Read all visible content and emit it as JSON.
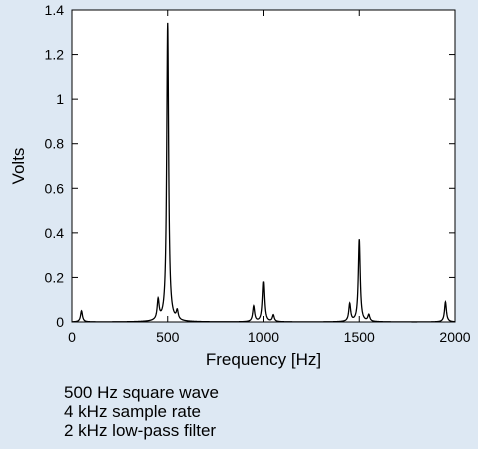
{
  "chart_data": {
    "type": "line",
    "title": "",
    "xlabel": "Frequency [Hz]",
    "ylabel": "Volts",
    "xlim": [
      0,
      2000
    ],
    "ylim": [
      0,
      1.4
    ],
    "xticks": [
      0,
      500,
      1000,
      1500,
      2000
    ],
    "xtick_labels": [
      "0",
      "500",
      "1000",
      "1500",
      "2000"
    ],
    "yticks": [
      0,
      0.2,
      0.4,
      0.6,
      0.8,
      1.0,
      1.2,
      1.4
    ],
    "ytick_labels": [
      "0",
      "0.2",
      "0.4",
      "0.6",
      "0.8",
      "1",
      "1.2",
      "1.4"
    ],
    "grid": false,
    "line_color": "#000000",
    "peaks": [
      {
        "x": 50,
        "y": 0.05
      },
      {
        "x": 450,
        "y": 0.09
      },
      {
        "x": 500,
        "y": 1.34
      },
      {
        "x": 550,
        "y": 0.04
      },
      {
        "x": 950,
        "y": 0.07
      },
      {
        "x": 1000,
        "y": 0.18
      },
      {
        "x": 1050,
        "y": 0.03
      },
      {
        "x": 1450,
        "y": 0.08
      },
      {
        "x": 1500,
        "y": 0.37
      },
      {
        "x": 1550,
        "y": 0.03
      },
      {
        "x": 1950,
        "y": 0.09
      }
    ]
  },
  "caption": {
    "line1": "500 Hz square wave",
    "line2": "4 kHz sample rate",
    "line3": "2 kHz low-pass filter"
  },
  "colors": {
    "background": "#dde8f3",
    "plot_area": "#ffffff",
    "axis": "#000000"
  }
}
